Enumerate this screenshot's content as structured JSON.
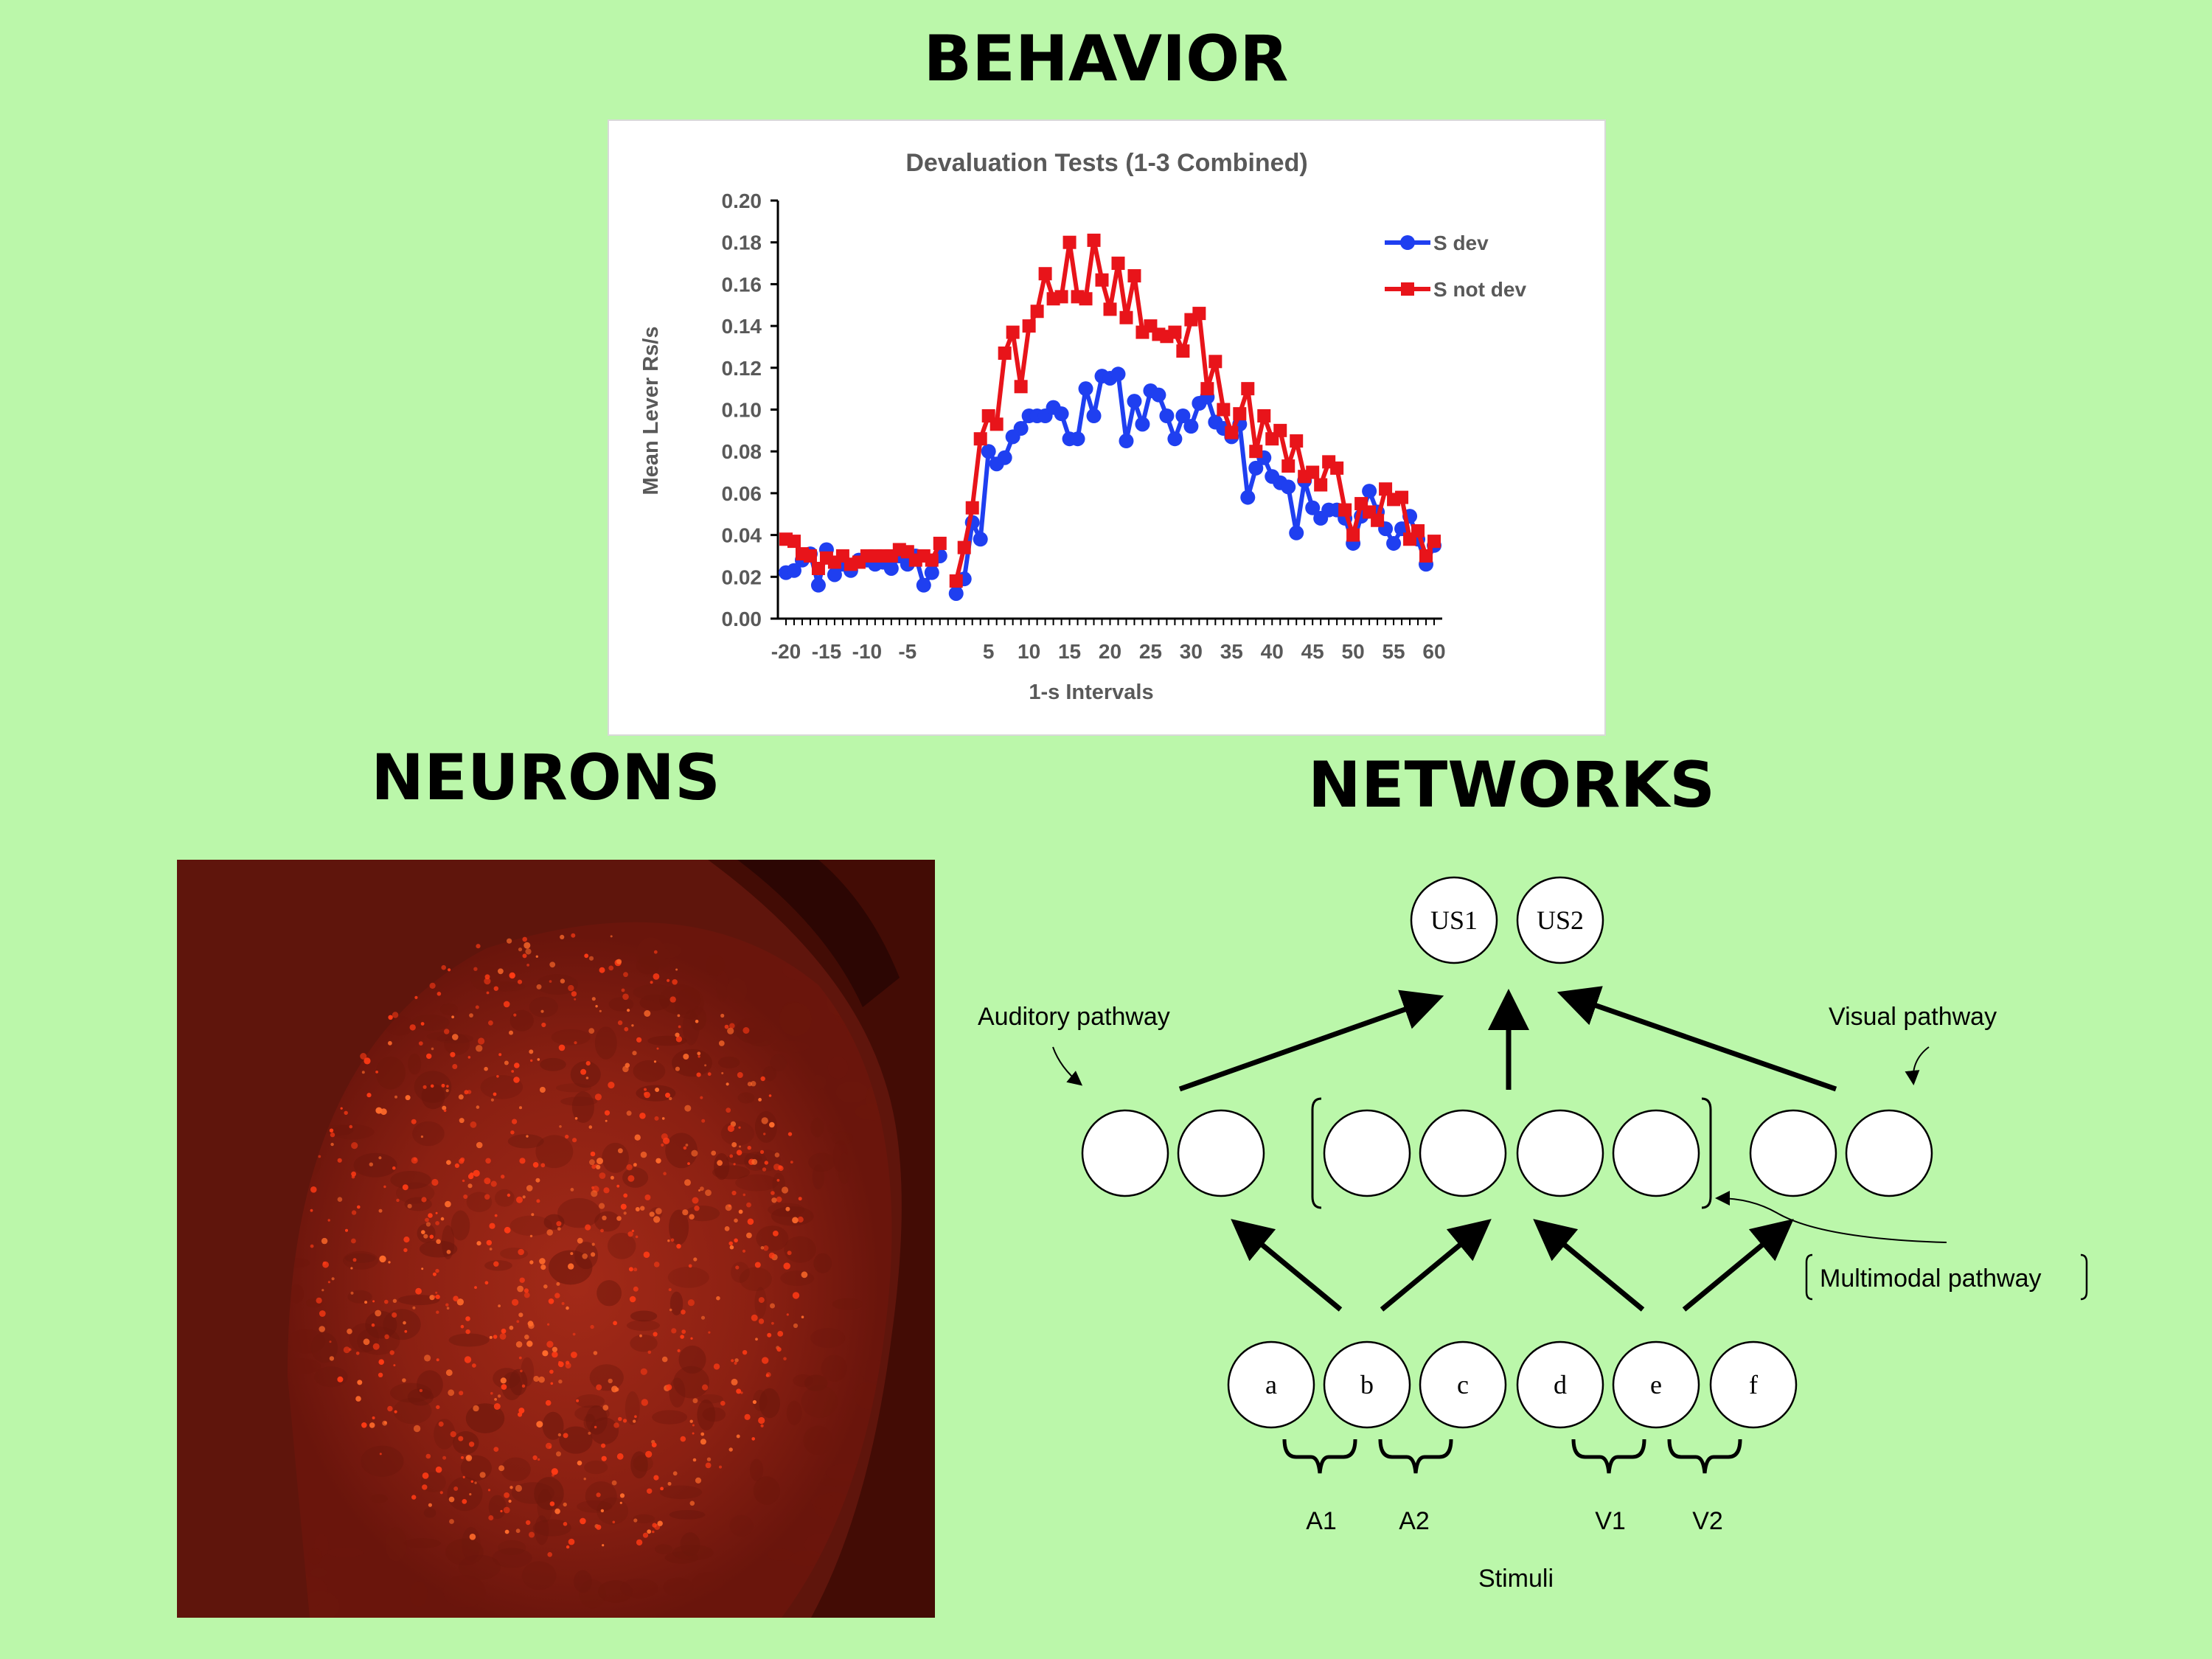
{
  "headings": {
    "behavior": "BEHAVIOR",
    "neurons": "NEURONS",
    "networks": "NETWORKS"
  },
  "chart_data": {
    "type": "line",
    "title": "Devaluation Tests (1-3 Combined)",
    "xlabel": "1-s Intervals",
    "ylabel": "Mean Lever Rs/s",
    "ylim": [
      0,
      0.2
    ],
    "xlim": [
      -20,
      60
    ],
    "yticks": [
      "0.00",
      "0.02",
      "0.04",
      "0.06",
      "0.08",
      "0.10",
      "0.12",
      "0.14",
      "0.16",
      "0.18",
      "0.20"
    ],
    "xticks": [
      "-20",
      "-15",
      "-10",
      "-5",
      "5",
      "10",
      "15",
      "20",
      "25",
      "30",
      "35",
      "40",
      "45",
      "50",
      "55",
      "60"
    ],
    "legend_position": "top-right",
    "gap_between": [
      -1,
      1
    ],
    "series": [
      {
        "name": "S dev",
        "color": "#1f3ff0",
        "marker": "circle",
        "x": [
          -20,
          -19,
          -18,
          -17,
          -16,
          -15,
          -14,
          -13,
          -12,
          -11,
          -10,
          -9,
          -8,
          -7,
          -6,
          -5,
          -4,
          -3,
          -2,
          -1,
          1,
          2,
          3,
          4,
          5,
          6,
          7,
          8,
          9,
          10,
          11,
          12,
          13,
          14,
          15,
          16,
          17,
          18,
          19,
          20,
          21,
          22,
          23,
          24,
          25,
          26,
          27,
          28,
          29,
          30,
          31,
          32,
          33,
          34,
          35,
          36,
          37,
          38,
          39,
          40,
          41,
          42,
          43,
          44,
          45,
          46,
          47,
          48,
          49,
          50,
          51,
          52,
          53,
          54,
          55,
          56,
          57,
          58,
          59,
          60
        ],
        "y": [
          0.022,
          0.023,
          0.028,
          0.031,
          0.016,
          0.033,
          0.021,
          0.026,
          0.023,
          0.028,
          0.028,
          0.026,
          0.027,
          0.024,
          0.03,
          0.026,
          0.03,
          0.016,
          0.022,
          0.03,
          0.012,
          0.019,
          0.046,
          0.038,
          0.08,
          0.074,
          0.077,
          0.087,
          0.091,
          0.097,
          0.097,
          0.097,
          0.101,
          0.098,
          0.086,
          0.086,
          0.11,
          0.097,
          0.116,
          0.115,
          0.117,
          0.085,
          0.104,
          0.093,
          0.109,
          0.107,
          0.097,
          0.086,
          0.097,
          0.092,
          0.103,
          0.106,
          0.094,
          0.091,
          0.087,
          0.093,
          0.058,
          0.072,
          0.077,
          0.068,
          0.065,
          0.063,
          0.041,
          0.066,
          0.053,
          0.048,
          0.052,
          0.052,
          0.048,
          0.036,
          0.049,
          0.061,
          0.051,
          0.043,
          0.036,
          0.043,
          0.049,
          0.038,
          0.026,
          0.035
        ]
      },
      {
        "name": "S not dev",
        "color": "#e8141a",
        "marker": "square",
        "x": [
          -20,
          -19,
          -18,
          -17,
          -16,
          -15,
          -14,
          -13,
          -12,
          -11,
          -10,
          -9,
          -8,
          -7,
          -6,
          -5,
          -4,
          -3,
          -2,
          -1,
          1,
          2,
          3,
          4,
          5,
          6,
          7,
          8,
          9,
          10,
          11,
          12,
          13,
          14,
          15,
          16,
          17,
          18,
          19,
          20,
          21,
          22,
          23,
          24,
          25,
          26,
          27,
          28,
          29,
          30,
          31,
          32,
          33,
          34,
          35,
          36,
          37,
          38,
          39,
          40,
          41,
          42,
          43,
          44,
          45,
          46,
          47,
          48,
          49,
          50,
          51,
          52,
          53,
          54,
          55,
          56,
          57,
          58,
          59,
          60
        ],
        "y": [
          0.038,
          0.037,
          0.031,
          0.03,
          0.024,
          0.029,
          0.027,
          0.03,
          0.026,
          0.027,
          0.03,
          0.03,
          0.03,
          0.03,
          0.033,
          0.032,
          0.028,
          0.03,
          0.028,
          0.036,
          0.018,
          0.034,
          0.053,
          0.086,
          0.097,
          0.093,
          0.127,
          0.137,
          0.111,
          0.14,
          0.147,
          0.165,
          0.153,
          0.154,
          0.18,
          0.154,
          0.153,
          0.181,
          0.162,
          0.148,
          0.17,
          0.144,
          0.164,
          0.137,
          0.14,
          0.136,
          0.135,
          0.137,
          0.128,
          0.143,
          0.146,
          0.11,
          0.123,
          0.1,
          0.089,
          0.098,
          0.11,
          0.08,
          0.097,
          0.086,
          0.09,
          0.073,
          0.085,
          0.068,
          0.07,
          0.064,
          0.075,
          0.072,
          0.052,
          0.04,
          0.055,
          0.051,
          0.047,
          0.062,
          0.057,
          0.058,
          0.038,
          0.042,
          0.03,
          0.037
        ]
      }
    ]
  },
  "network": {
    "top_nodes": [
      "US1",
      "US2"
    ],
    "input_nodes": [
      "a",
      "b",
      "c",
      "d",
      "e",
      "f"
    ],
    "pathway_labels": {
      "auditory": "Auditory pathway",
      "visual": "Visual pathway",
      "multimodal": "Multimodal pathway"
    },
    "group_labels": [
      "A1",
      "A2",
      "V1",
      "V2"
    ],
    "stimuli_label": "Stimuli"
  }
}
